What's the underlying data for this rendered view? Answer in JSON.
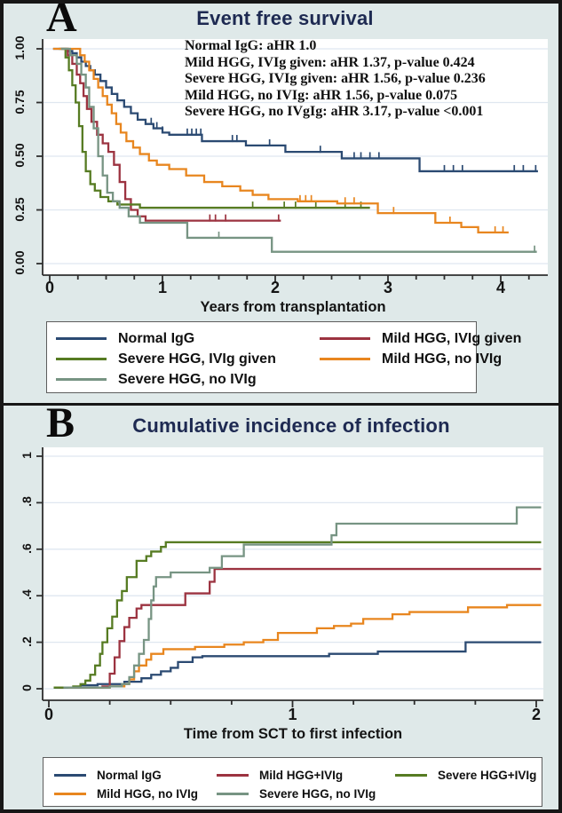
{
  "figure": {
    "background": "#dfe9e9",
    "plot_background": "#ffffff",
    "border_color": "#171717",
    "grid_color": "#dfe7f0",
    "axis_color": "#2e2e2e",
    "text_color": "#101010",
    "title_color": "#1e2a52",
    "legend_border_color": "#5d5d5d"
  },
  "chart_data": [
    {
      "panel_letter": "A",
      "title": "Event free survival",
      "type": "line",
      "subtype": "kaplan-meier-step",
      "xlabel": "Years from transplantation",
      "xlim": [
        0,
        4.42
      ],
      "xticks": [
        0,
        1,
        2,
        3,
        4
      ],
      "x_minor_step": 0.25,
      "ylim": [
        0,
        1
      ],
      "yticks": [
        {
          "value": 0,
          "label": "0.00"
        },
        {
          "value": 0.25,
          "label": "0.25"
        },
        {
          "value": 0.5,
          "label": "0.50"
        },
        {
          "value": 0.75,
          "label": "0.75"
        },
        {
          "value": 1,
          "label": "1.00"
        }
      ],
      "grid": "horizontal",
      "legend_position": "below",
      "legend_columns": 2,
      "annotations": [
        "Normal IgG: aHR 1.0",
        "Mild HGG, IVIg given: aHR 1.37, p-value 0.424",
        "Severe HGG, IVIg given: aHR 1.56, p-value 0.236",
        "Mild HGG, no IVIg: aHR 1.56, p-value 0.075",
        "Severe HGG, no IVgIg: aHR 3.17, p-value <0.001"
      ],
      "series": [
        {
          "key": "normal",
          "label": "Normal IgG",
          "color": "#2b4a72",
          "points": [
            [
              0.03,
              1
            ],
            [
              0.16,
              0.99
            ],
            [
              0.2,
              0.98
            ],
            [
              0.24,
              0.96
            ],
            [
              0.28,
              0.94
            ],
            [
              0.32,
              0.92
            ],
            [
              0.36,
              0.9
            ],
            [
              0.4,
              0.88
            ],
            [
              0.45,
              0.85
            ],
            [
              0.5,
              0.82
            ],
            [
              0.55,
              0.79
            ],
            [
              0.6,
              0.76
            ],
            [
              0.66,
              0.73
            ],
            [
              0.72,
              0.7
            ],
            [
              0.78,
              0.67
            ],
            [
              0.85,
              0.65
            ],
            [
              0.92,
              0.63
            ],
            [
              1,
              0.61
            ],
            [
              1.06,
              0.6
            ],
            [
              1.35,
              0.57
            ],
            [
              1.74,
              0.55
            ],
            [
              2.09,
              0.52
            ],
            [
              2.59,
              0.49
            ],
            [
              3.28,
              0.43
            ],
            [
              4.33,
              0.43
            ]
          ],
          "censor_times": [
            0.9,
            0.95,
            1,
            1.22,
            1.26,
            1.3,
            1.34,
            1.62,
            1.66,
            1.95,
            2.4,
            2.7,
            2.76,
            2.84,
            2.92,
            3.5,
            3.58,
            3.66,
            4.12,
            4.2,
            4.31
          ]
        },
        {
          "key": "mild_ivig",
          "label": "Mild HGG, IVIg given",
          "color": "#9c3340",
          "points": [
            [
              0.1,
              1
            ],
            [
              0.16,
              0.97
            ],
            [
              0.2,
              0.93
            ],
            [
              0.24,
              0.88
            ],
            [
              0.27,
              0.84
            ],
            [
              0.3,
              0.78
            ],
            [
              0.33,
              0.72
            ],
            [
              0.37,
              0.66
            ],
            [
              0.42,
              0.6
            ],
            [
              0.47,
              0.56
            ],
            [
              0.52,
              0.52
            ],
            [
              0.57,
              0.46
            ],
            [
              0.62,
              0.38
            ],
            [
              0.67,
              0.3
            ],
            [
              0.72,
              0.25
            ],
            [
              0.78,
              0.22
            ],
            [
              0.85,
              0.2
            ],
            [
              2.05,
              0.2
            ]
          ],
          "censor_times": [
            1.42,
            1.47,
            1.56,
            2.03
          ]
        },
        {
          "key": "severe_ivig",
          "label": "Severe HGG, IVIg given",
          "color": "#567b22",
          "points": [
            [
              0.08,
              1
            ],
            [
              0.14,
              0.96
            ],
            [
              0.17,
              0.9
            ],
            [
              0.2,
              0.83
            ],
            [
              0.23,
              0.75
            ],
            [
              0.26,
              0.64
            ],
            [
              0.29,
              0.52
            ],
            [
              0.32,
              0.43
            ],
            [
              0.36,
              0.37
            ],
            [
              0.4,
              0.34
            ],
            [
              0.45,
              0.31
            ],
            [
              0.52,
              0.29
            ],
            [
              0.6,
              0.275
            ],
            [
              0.8,
              0.26
            ],
            [
              2.84,
              0.26
            ]
          ],
          "censor_times": [
            1.8,
            2.08,
            2.18,
            2.36,
            2.62,
            2.76
          ]
        },
        {
          "key": "mild_noivig",
          "label": "Mild HGG, no IVIg",
          "color": "#e8861f",
          "points": [
            [
              0.03,
              1
            ],
            [
              0.27,
              0.97
            ],
            [
              0.31,
              0.94
            ],
            [
              0.35,
              0.9
            ],
            [
              0.39,
              0.86
            ],
            [
              0.43,
              0.82
            ],
            [
              0.47,
              0.78
            ],
            [
              0.51,
              0.74
            ],
            [
              0.55,
              0.7
            ],
            [
              0.59,
              0.65
            ],
            [
              0.63,
              0.61
            ],
            [
              0.68,
              0.57
            ],
            [
              0.74,
              0.54
            ],
            [
              0.8,
              0.51
            ],
            [
              0.88,
              0.48
            ],
            [
              0.95,
              0.46
            ],
            [
              1.06,
              0.44
            ],
            [
              1.21,
              0.41
            ],
            [
              1.37,
              0.38
            ],
            [
              1.53,
              0.36
            ],
            [
              1.69,
              0.34
            ],
            [
              1.8,
              0.32
            ],
            [
              1.94,
              0.3
            ],
            [
              2.2,
              0.29
            ],
            [
              2.55,
              0.28
            ],
            [
              2.91,
              0.235
            ],
            [
              3.42,
              0.19
            ],
            [
              3.65,
              0.17
            ],
            [
              3.8,
              0.145
            ],
            [
              4.07,
              0.145
            ]
          ],
          "censor_times": [
            2.22,
            2.27,
            2.32,
            2.62,
            2.7,
            3.05,
            3.55,
            3.95,
            4.02
          ]
        },
        {
          "key": "severe_noivig",
          "label": "Severe HGG, no IVIg",
          "color": "#779483",
          "points": [
            [
              0.1,
              1
            ],
            [
              0.18,
              0.97
            ],
            [
              0.24,
              0.93
            ],
            [
              0.28,
              0.88
            ],
            [
              0.32,
              0.82
            ],
            [
              0.35,
              0.73
            ],
            [
              0.39,
              0.63
            ],
            [
              0.43,
              0.5
            ],
            [
              0.47,
              0.41
            ],
            [
              0.51,
              0.33
            ],
            [
              0.56,
              0.29
            ],
            [
              0.62,
              0.26
            ],
            [
              0.7,
              0.22
            ],
            [
              0.8,
              0.19
            ],
            [
              1.22,
              0.12
            ],
            [
              1.97,
              0.055
            ],
            [
              4.32,
              0.055
            ]
          ],
          "censor_times": [
            1.5,
            4.3
          ]
        }
      ]
    },
    {
      "panel_letter": "B",
      "title": "Cumulative incidence of infection",
      "type": "line",
      "subtype": "cumulative-incidence-step",
      "xlabel": "Time from SCT to first infection",
      "xlim": [
        0,
        2.03
      ],
      "xticks": [
        0,
        1,
        2
      ],
      "x_minor_step": 0.25,
      "ylim": [
        0,
        1
      ],
      "yticks": [
        {
          "value": 0,
          "label": "0"
        },
        {
          "value": 0.2,
          "label": ".2"
        },
        {
          "value": 0.4,
          "label": ".4"
        },
        {
          "value": 0.6,
          "label": ".6"
        },
        {
          "value": 0.8,
          "label": ".8"
        },
        {
          "value": 1,
          "label": "1"
        }
      ],
      "grid": "horizontal",
      "legend_position": "below",
      "legend_columns": 3,
      "annotations": [],
      "series": [
        {
          "key": "normal",
          "label": "Normal IgG",
          "color": "#2b4a72",
          "points": [
            [
              0.02,
              0.005
            ],
            [
              0.13,
              0.015
            ],
            [
              0.2,
              0.02
            ],
            [
              0.31,
              0.03
            ],
            [
              0.38,
              0.045
            ],
            [
              0.42,
              0.06
            ],
            [
              0.46,
              0.075
            ],
            [
              0.5,
              0.09
            ],
            [
              0.53,
              0.115
            ],
            [
              0.59,
              0.135
            ],
            [
              0.63,
              0.14
            ],
            [
              1.15,
              0.15
            ],
            [
              1.35,
              0.16
            ],
            [
              1.71,
              0.2
            ],
            [
              2.02,
              0.2
            ]
          ],
          "censor_times": []
        },
        {
          "key": "mild_ivig",
          "label": "Mild HGG+IVIg",
          "color": "#9c3340",
          "points": [
            [
              0.04,
              0.005
            ],
            [
              0.22,
              0.01
            ],
            [
              0.25,
              0.065
            ],
            [
              0.27,
              0.135
            ],
            [
              0.29,
              0.205
            ],
            [
              0.31,
              0.265
            ],
            [
              0.33,
              0.305
            ],
            [
              0.36,
              0.345
            ],
            [
              0.38,
              0.36
            ],
            [
              0.56,
              0.41
            ],
            [
              0.66,
              0.46
            ],
            [
              0.68,
              0.515
            ],
            [
              2.02,
              0.515
            ]
          ],
          "censor_times": []
        },
        {
          "key": "severe_ivig",
          "label": "Severe HGG+IVIg",
          "color": "#567b22",
          "points": [
            [
              0.02,
              0.005
            ],
            [
              0.1,
              0.01
            ],
            [
              0.13,
              0.02
            ],
            [
              0.15,
              0.035
            ],
            [
              0.17,
              0.06
            ],
            [
              0.19,
              0.1
            ],
            [
              0.21,
              0.15
            ],
            [
              0.22,
              0.2
            ],
            [
              0.24,
              0.26
            ],
            [
              0.26,
              0.31
            ],
            [
              0.28,
              0.38
            ],
            [
              0.3,
              0.42
            ],
            [
              0.32,
              0.48
            ],
            [
              0.36,
              0.55
            ],
            [
              0.4,
              0.57
            ],
            [
              0.42,
              0.59
            ],
            [
              0.46,
              0.61
            ],
            [
              0.48,
              0.63
            ],
            [
              2.02,
              0.63
            ]
          ],
          "censor_times": []
        },
        {
          "key": "mild_noivig",
          "label": "Mild HGG, no IVIg",
          "color": "#e8861f",
          "points": [
            [
              0.08,
              0.005
            ],
            [
              0.25,
              0.01
            ],
            [
              0.31,
              0.02
            ],
            [
              0.33,
              0.04
            ],
            [
              0.35,
              0.075
            ],
            [
              0.37,
              0.1
            ],
            [
              0.4,
              0.125
            ],
            [
              0.42,
              0.15
            ],
            [
              0.47,
              0.17
            ],
            [
              0.6,
              0.18
            ],
            [
              0.72,
              0.19
            ],
            [
              0.8,
              0.2
            ],
            [
              0.88,
              0.21
            ],
            [
              0.94,
              0.24
            ],
            [
              1.1,
              0.26
            ],
            [
              1.17,
              0.27
            ],
            [
              1.24,
              0.28
            ],
            [
              1.29,
              0.3
            ],
            [
              1.41,
              0.32
            ],
            [
              1.48,
              0.33
            ],
            [
              1.72,
              0.35
            ],
            [
              1.88,
              0.36
            ],
            [
              2.02,
              0.36
            ]
          ],
          "censor_times": []
        },
        {
          "key": "severe_noivig",
          "label": "Severe HGG, no IVIg",
          "color": "#779483",
          "points": [
            [
              0.06,
              0.005
            ],
            [
              0.25,
              0.01
            ],
            [
              0.3,
              0.02
            ],
            [
              0.33,
              0.05
            ],
            [
              0.35,
              0.1
            ],
            [
              0.37,
              0.15
            ],
            [
              0.39,
              0.21
            ],
            [
              0.41,
              0.3
            ],
            [
              0.42,
              0.38
            ],
            [
              0.43,
              0.44
            ],
            [
              0.44,
              0.48
            ],
            [
              0.5,
              0.5
            ],
            [
              0.66,
              0.52
            ],
            [
              0.71,
              0.57
            ],
            [
              0.8,
              0.62
            ],
            [
              1.16,
              0.66
            ],
            [
              1.18,
              0.71
            ],
            [
              1.92,
              0.78
            ],
            [
              2.02,
              0.78
            ]
          ],
          "censor_times": []
        }
      ]
    }
  ]
}
